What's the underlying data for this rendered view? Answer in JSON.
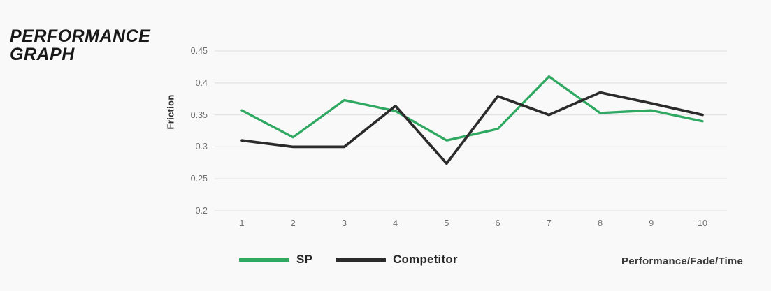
{
  "header": {
    "title_line1": "PERFORMANCE",
    "title_line2": "GRAPH"
  },
  "colors": {
    "background": "#f9f9f9",
    "gridline": "#e4e4e4",
    "tick_text": "#6f6f6f",
    "title_text": "#181818",
    "sp_green": "#2fa862",
    "competitor_black": "#2b2b2b"
  },
  "chart_data": {
    "type": "line",
    "title": "PERFORMANCE GRAPH",
    "ylabel": "Friction",
    "xlabel": "",
    "xcaption": "Performance/Fade/Time",
    "x": [
      "1",
      "2",
      "3",
      "4",
      "5",
      "6",
      "7",
      "8",
      "9",
      "10"
    ],
    "yticks": [
      "0.45",
      "0.4",
      "0.35",
      "0.3",
      "0.25",
      "0.2"
    ],
    "ylim": [
      0.2,
      0.45
    ],
    "grid": "horizontal-only",
    "legend_position": "bottom-left",
    "series": [
      {
        "name": "SP",
        "color": "#2fa862",
        "values": [
          0.357,
          0.315,
          0.373,
          0.356,
          0.31,
          0.328,
          0.41,
          0.353,
          0.357,
          0.34
        ]
      },
      {
        "name": "Competitor",
        "color": "#2b2b2b",
        "values": [
          0.31,
          0.3,
          0.3,
          0.364,
          0.274,
          0.379,
          0.35,
          0.385,
          0.368,
          0.35
        ]
      }
    ]
  }
}
